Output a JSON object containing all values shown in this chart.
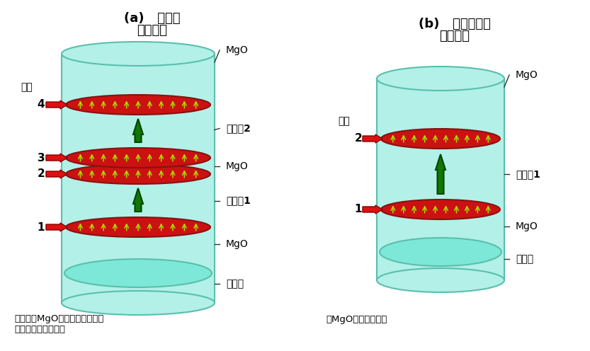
{
  "bg_color": "#ffffff",
  "cyl_fill": "#b2f0e8",
  "cyl_edge": "#5abfad",
  "ref_fill": "#7de8d8",
  "disk_fill": "#cc1111",
  "disk_edge": "#881111",
  "arrow_color": "#aadd00",
  "green_arrow": "#117700",
  "red_arrow": "#dd1111",
  "label_mgo": "MgO",
  "label_ref": "参考层",
  "label_rec2": "记录剂2",
  "label_rec1": "记录剂1",
  "label_jm": "界面",
  "title_a1": "(a)   新技术",
  "title_a2": "四重界面",
  "title_b1": "(b)   以往的技术",
  "title_b2": "双重界面",
  "caption_a": "通过将与MgO的界面增至四重，\n使磁铁的方向更稳定",
  "caption_b": "与MgO的界面为双重"
}
